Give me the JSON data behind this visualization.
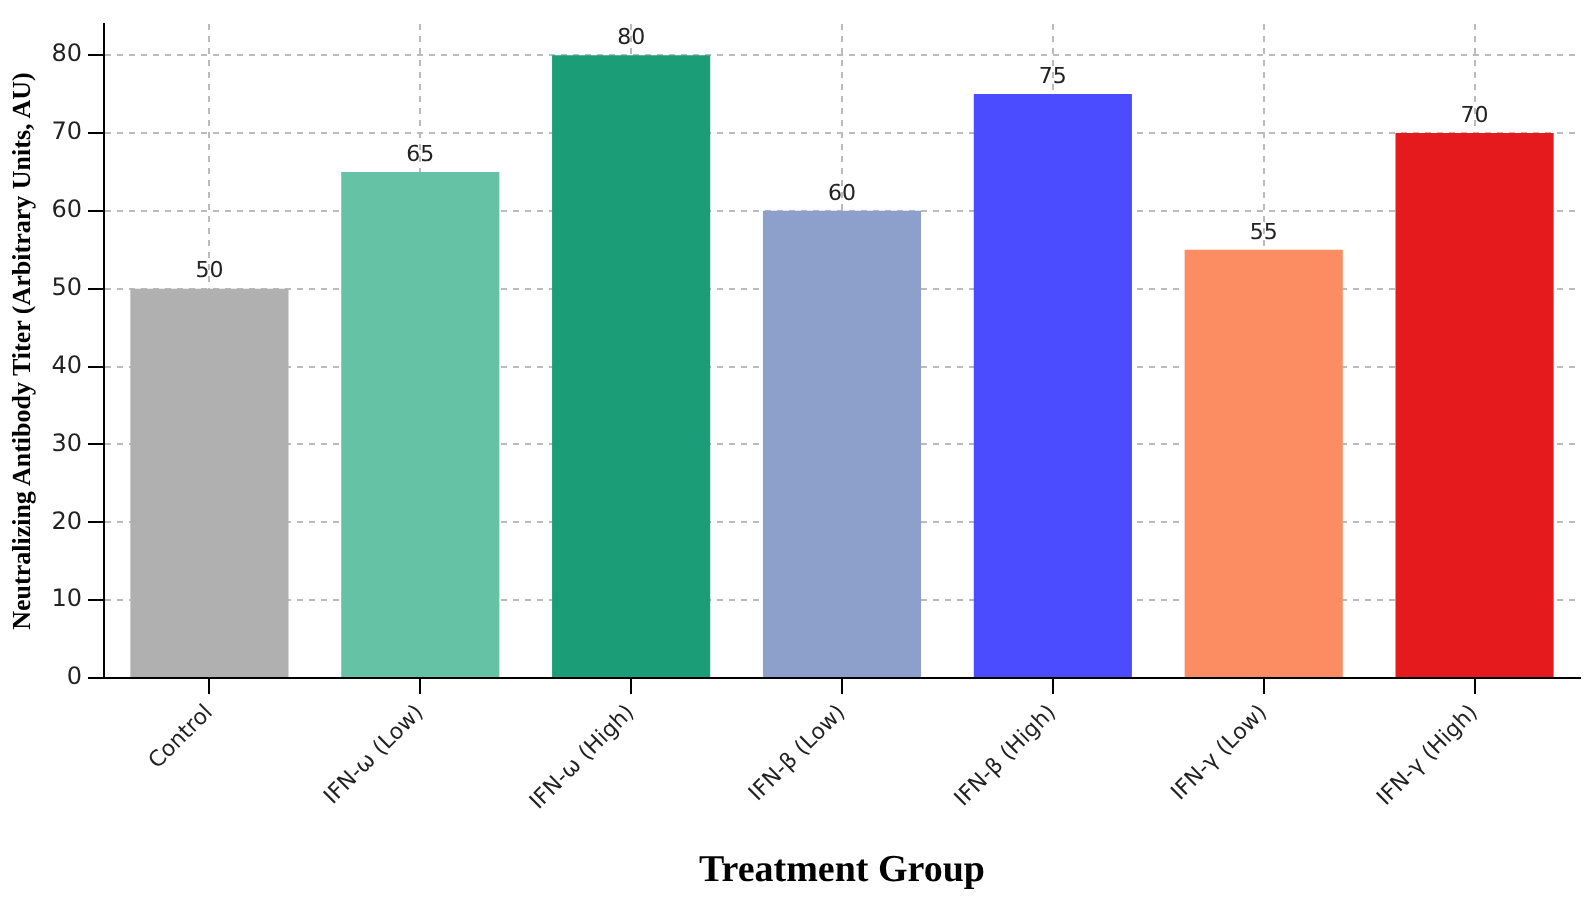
{
  "chart_data": {
    "type": "bar",
    "xlabel": "Treatment Group",
    "ylabel": "Neutralizing Antibody Titer (Arbitrary Units, AU)",
    "categories": [
      "Control",
      "IFN-ω (Low)",
      "IFN-ω (High)",
      "IFN-β (Low)",
      "IFN-β (High)",
      "IFN-γ (Low)",
      "IFN-γ (High)"
    ],
    "values": [
      50,
      65,
      80,
      60,
      75,
      55,
      70
    ],
    "colors": [
      "#b0b0b0",
      "#66c2a5",
      "#1b9e77",
      "#8da0cb",
      "#4b4bff",
      "#fc8d62",
      "#e41a1c"
    ],
    "ylim": [
      0,
      84
    ],
    "yticks": [
      0,
      10,
      20,
      30,
      40,
      50,
      60,
      70,
      80
    ],
    "grid": true,
    "data_labels": true,
    "legend": false
  }
}
